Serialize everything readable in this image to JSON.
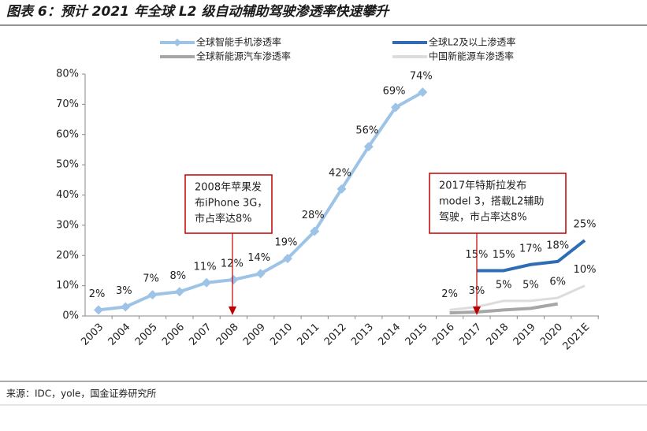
{
  "chart_data": {
    "type": "line",
    "title": "图表 6：预计 2021 年全球 L2 级自动辅助驾驶渗透率快速攀升",
    "source": "来源：IDC，yole，国金证券研究所",
    "categories": [
      "2003",
      "2004",
      "2005",
      "2006",
      "2007",
      "2008",
      "2009",
      "2010",
      "2011",
      "2012",
      "2013",
      "2014",
      "2015",
      "2016",
      "2017",
      "2018",
      "2019",
      "2020",
      "2021E"
    ],
    "ylim": [
      0,
      80
    ],
    "yticks": [
      {
        "value": 0,
        "label": "0%"
      },
      {
        "value": 10,
        "label": "10%"
      },
      {
        "value": 20,
        "label": "20%"
      },
      {
        "value": 30,
        "label": "30%"
      },
      {
        "value": 40,
        "label": "40%"
      },
      {
        "value": 50,
        "label": "50%"
      },
      {
        "value": 60,
        "label": "60%"
      },
      {
        "value": 70,
        "label": "70%"
      },
      {
        "value": 80,
        "label": "80%"
      }
    ],
    "series": [
      {
        "name": "全球智能手机渗透率",
        "color": "#9dc3e6",
        "marker": "diamond",
        "values": [
          2,
          3,
          7,
          8,
          11,
          12,
          14,
          19,
          28,
          42,
          56,
          69,
          74,
          null,
          null,
          null,
          null,
          null,
          null
        ],
        "value_labels": [
          "2%",
          "3%",
          "7%",
          "8%",
          "11%",
          "12%",
          "14%",
          "19%",
          "28%",
          "42%",
          "56%",
          "69%",
          "74%",
          null,
          null,
          null,
          null,
          null,
          null
        ]
      },
      {
        "name": "全球L2及以上渗透率",
        "color": "#2e6db4",
        "values": [
          null,
          null,
          null,
          null,
          null,
          null,
          null,
          null,
          null,
          null,
          null,
          null,
          null,
          null,
          15,
          15,
          17,
          18,
          25
        ],
        "value_labels": [
          null,
          null,
          null,
          null,
          null,
          null,
          null,
          null,
          null,
          null,
          null,
          null,
          null,
          null,
          "15%",
          "15%",
          "17%",
          "18%",
          "25%"
        ]
      },
      {
        "name": "全球新能源汽车渗透率",
        "color": "#a6a6a6",
        "values": [
          null,
          null,
          null,
          null,
          null,
          null,
          null,
          null,
          null,
          null,
          null,
          null,
          null,
          1,
          1.3,
          2,
          2.5,
          4,
          null
        ]
      },
      {
        "name": "中国新能源车渗透率",
        "color": "#dcdcdc",
        "values": [
          null,
          null,
          null,
          null,
          null,
          null,
          null,
          null,
          null,
          null,
          null,
          null,
          null,
          2,
          3,
          5,
          5,
          6,
          10
        ],
        "value_labels": [
          null,
          null,
          null,
          null,
          null,
          null,
          null,
          null,
          null,
          null,
          null,
          null,
          null,
          "2%",
          "3%",
          "5%",
          "5%",
          "6%",
          "10%"
        ]
      }
    ],
    "annotations": [
      {
        "lines": [
          "2008年苹果发",
          "布iPhone 3G，",
          "市占率达8%"
        ]
      },
      {
        "lines": [
          "2017年特斯拉发布",
          "model 3，搭载L2辅助",
          "驾驶，市占率达8%"
        ]
      }
    ]
  }
}
